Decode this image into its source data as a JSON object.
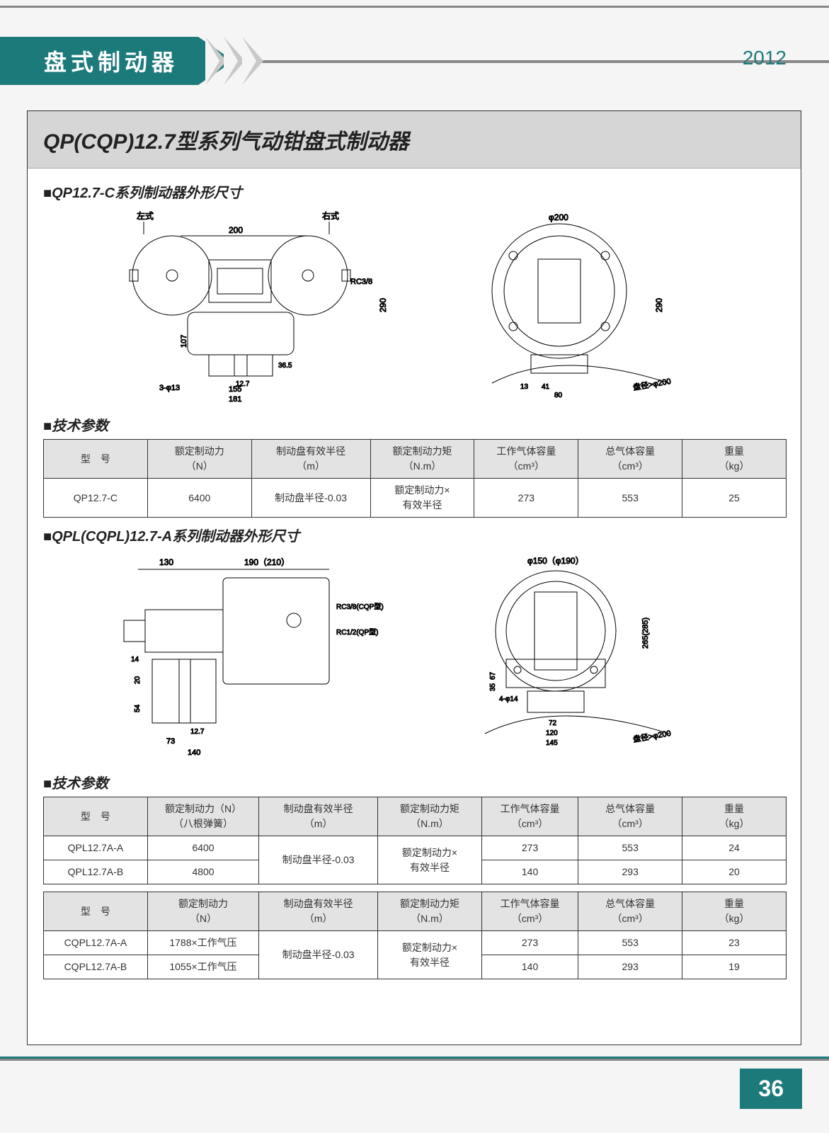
{
  "header": {
    "tab": "盘式制动器",
    "year": "2012",
    "pageNumber": "36"
  },
  "title": "QP(CQP)12.7型系列气动钳盘式制动器",
  "section1": {
    "heading": "■QP12.7-C系列制动器外形尺寸",
    "diagram_labels": {
      "left_label": "左式",
      "right_label": "右式",
      "span_200": "200",
      "height_290": "290",
      "height_107": "107",
      "dim_36_5": "36.5",
      "dim_12_7": "12.7",
      "dim_155": "155",
      "dim_181": "181",
      "holes": "3-φ13",
      "port": "RC3/8",
      "dia_200": "φ200",
      "side_height_290": "290",
      "dim_13": "13",
      "dim_41": "41",
      "dim_80": "80",
      "disc_note": "盘径>φ200"
    }
  },
  "paramsHeading": "■技术参数",
  "tableHeaders": {
    "model": "型　号",
    "ratedForce": "额定制动力\n（N）",
    "ratedForceSpring": "额定制动力（N）\n（八根弹簧）",
    "effRadius": "制动盘有效半径\n（m）",
    "ratedTorque": "额定制动力矩\n（N.m）",
    "workVol": "工作气体容量\n（cm³）",
    "totalVol": "总气体容量\n（cm³）",
    "weight": "重量\n（kg）"
  },
  "table1_row": {
    "model": "QP12.7-C",
    "force": "6400",
    "radius": "制动盘半径-0.03",
    "torque": "额定制动力×\n有效半径",
    "workVol": "273",
    "totalVol": "553",
    "weight": "25"
  },
  "section2": {
    "heading": "■QPL(CQPL)12.7-A系列制动器外形尺寸",
    "diagram_labels": {
      "dim_130": "130",
      "dim_190_210": "190（210）",
      "port1": "RC3/8(CQP型)",
      "port2": "RC1/2(QP型)",
      "dim_14": "14",
      "dim_20": "20",
      "dim_54": "54",
      "dim_12_7": "12.7",
      "dim_73": "73",
      "dim_140": "140",
      "dia_150_190": "φ150（φ190）",
      "height_265_285": "265(285)",
      "dim_67": "67",
      "dim_35": "35",
      "holes": "4-φ14",
      "dim_72": "72",
      "dim_120": "120",
      "dim_145": "145",
      "disc_note": "盘径>φ200"
    }
  },
  "table2": {
    "radius": "制动盘半径-0.03",
    "torque": "额定制动力×\n有效半径",
    "rows": [
      {
        "model": "QPL12.7A-A",
        "force": "6400",
        "workVol": "273",
        "totalVol": "553",
        "weight": "24"
      },
      {
        "model": "QPL12.7A-B",
        "force": "4800",
        "workVol": "140",
        "totalVol": "293",
        "weight": "20"
      }
    ]
  },
  "table3": {
    "radius": "制动盘半径-0.03",
    "torque": "额定制动力×\n有效半径",
    "rows": [
      {
        "model": "CQPL12.7A-A",
        "force": "1788×工作气压",
        "workVol": "273",
        "totalVol": "553",
        "weight": "23"
      },
      {
        "model": "CQPL12.7A-B",
        "force": "1055×工作气压",
        "workVol": "140",
        "totalVol": "293",
        "weight": "19"
      }
    ]
  }
}
